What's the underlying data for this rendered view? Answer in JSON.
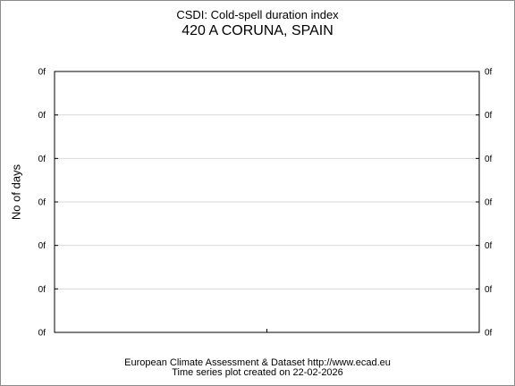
{
  "chart_data": {
    "type": "line",
    "title": "CSDI: Cold-spell duration index",
    "subtitle": "420 A CORUNA, SPAIN",
    "ylabel": "No of days",
    "y_tick_labels": [
      "0f",
      "0f",
      "0f",
      "0f",
      "0f",
      "0f",
      "0f"
    ],
    "series": [],
    "grid": true
  },
  "footer": {
    "line1": "European Climate Assessment & Dataset  http://www.ecad.eu",
    "line2": "Time series plot created on 22-02-2026"
  }
}
